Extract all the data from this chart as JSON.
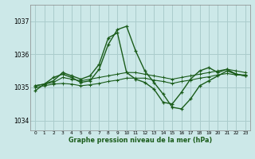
{
  "xlabel": "Graphe pression niveau de la mer (hPa)",
  "background_color": "#cce8e8",
  "grid_color": "#aacccc",
  "line_color": "#1a5c1a",
  "xlim": [
    -0.5,
    23.5
  ],
  "ylim": [
    1033.7,
    1037.5
  ],
  "yticks": [
    1034,
    1035,
    1036,
    1037
  ],
  "xticks": [
    0,
    1,
    2,
    3,
    4,
    5,
    6,
    7,
    8,
    9,
    10,
    11,
    12,
    13,
    14,
    15,
    16,
    17,
    18,
    19,
    20,
    21,
    22,
    23
  ],
  "series": [
    [
      1034.9,
      1035.1,
      1035.3,
      1035.4,
      1035.3,
      1035.15,
      1035.2,
      1035.55,
      1036.3,
      1036.75,
      1036.85,
      1036.1,
      1035.5,
      1035.15,
      1034.8,
      1034.4,
      1034.35,
      1034.65,
      1035.05,
      1035.2,
      1035.35,
      1035.5,
      1035.4,
      1035.35
    ],
    [
      1035.05,
      1035.1,
      1035.15,
      1035.3,
      1035.25,
      1035.2,
      1035.25,
      1035.3,
      1035.35,
      1035.4,
      1035.45,
      1035.45,
      1035.4,
      1035.35,
      1035.3,
      1035.25,
      1035.3,
      1035.35,
      1035.4,
      1035.45,
      1035.5,
      1035.55,
      1035.5,
      1035.45
    ],
    [
      1035.0,
      1035.05,
      1035.1,
      1035.12,
      1035.1,
      1035.05,
      1035.08,
      1035.12,
      1035.18,
      1035.22,
      1035.28,
      1035.28,
      1035.28,
      1035.22,
      1035.18,
      1035.12,
      1035.18,
      1035.22,
      1035.28,
      1035.32,
      1035.38,
      1035.42,
      1035.38,
      1035.38
    ],
    [
      1035.05,
      1035.1,
      1035.2,
      1035.45,
      1035.35,
      1035.25,
      1035.35,
      1035.7,
      1036.5,
      1036.65,
      1035.45,
      1035.25,
      1035.15,
      1034.95,
      1034.55,
      1034.5,
      1034.85,
      1035.25,
      1035.5,
      1035.6,
      1035.45,
      1035.55,
      1035.4,
      1035.35
    ]
  ]
}
